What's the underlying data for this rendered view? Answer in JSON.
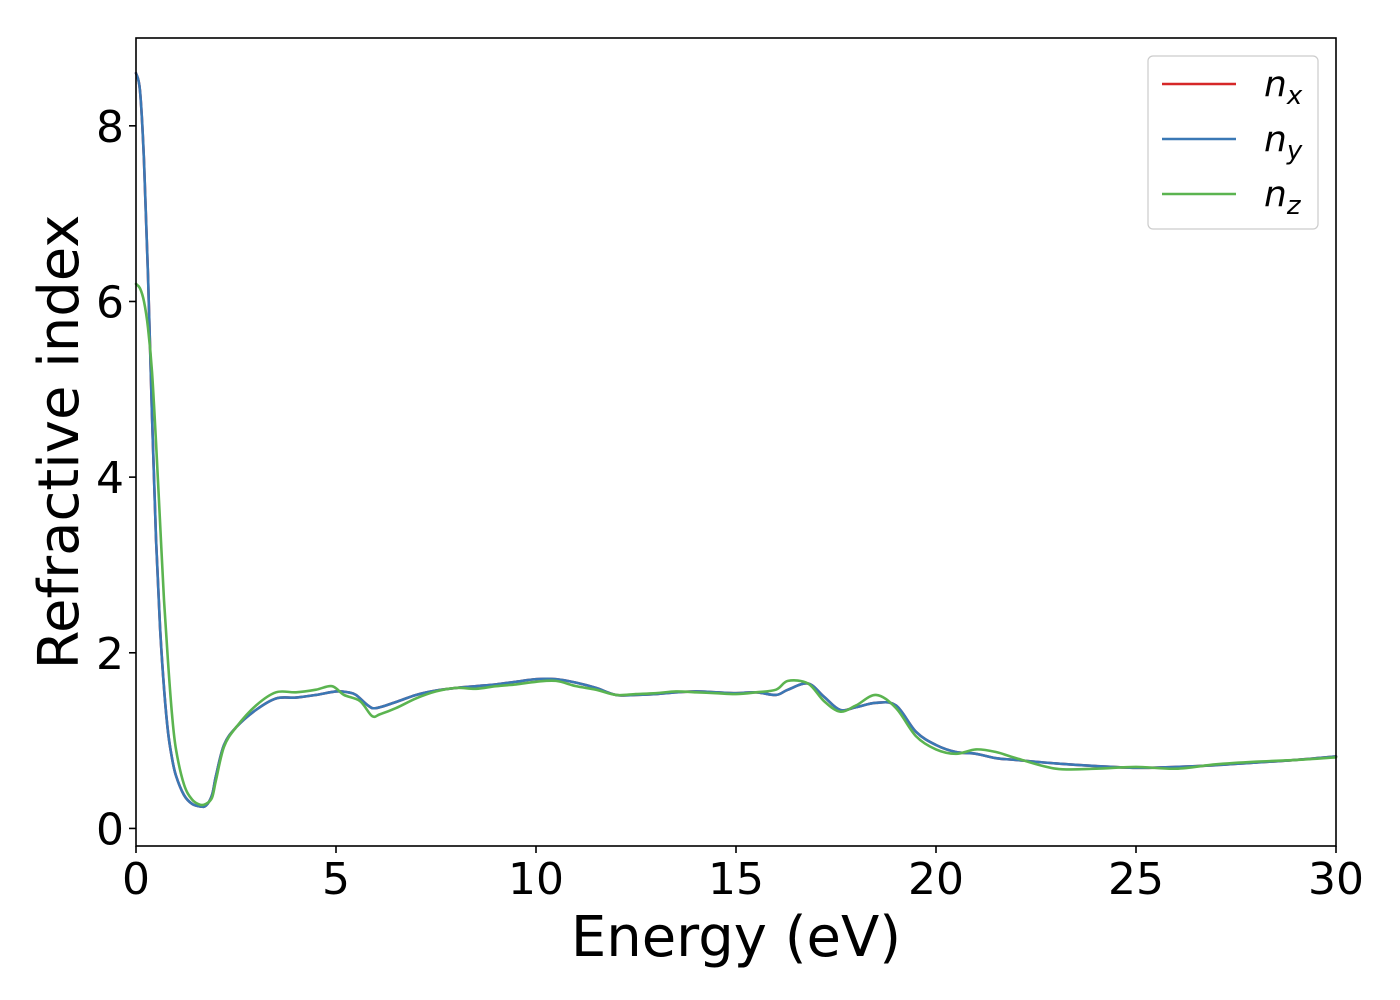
{
  "chart_data": {
    "type": "line",
    "title": "",
    "xlabel": "Energy (eV)",
    "ylabel": "Refractive index",
    "xlim": [
      0,
      30
    ],
    "ylim": [
      -0.2,
      9.0
    ],
    "xticks": [
      0,
      5,
      10,
      15,
      20,
      25,
      30
    ],
    "xtick_labels": [
      "0",
      "5",
      "10",
      "15",
      "20",
      "25",
      "30"
    ],
    "yticks": [
      0,
      2,
      4,
      6,
      8
    ],
    "ytick_labels": [
      "0",
      "2",
      "4",
      "6",
      "8"
    ],
    "grid": false,
    "legend_position": "top-right",
    "series": [
      {
        "name": "n_x",
        "label_main": "n",
        "label_sub": "x",
        "color": "#d62728",
        "x": [
          0,
          0.1,
          0.2,
          0.3,
          0.4,
          0.5,
          0.6,
          0.7,
          0.8,
          0.9,
          1.0,
          1.2,
          1.4,
          1.6,
          1.75,
          1.9,
          2.0,
          2.2,
          2.5,
          3.0,
          3.5,
          4.0,
          4.5,
          5.0,
          5.3,
          5.5,
          5.8,
          6.0,
          6.5,
          7.0,
          7.5,
          8.0,
          8.5,
          9.0,
          9.5,
          10.0,
          10.5,
          11.0,
          11.5,
          12.0,
          12.5,
          13.0,
          13.5,
          14.0,
          14.5,
          15.0,
          15.5,
          16.0,
          16.3,
          16.8,
          17.2,
          17.6,
          18.0,
          18.5,
          19.0,
          19.5,
          20.0,
          20.5,
          21.0,
          21.5,
          22.0,
          23.0,
          24.0,
          25.0,
          26.0,
          27.0,
          28.0,
          29.0,
          30.0
        ],
        "y": [
          8.6,
          8.4,
          7.6,
          6.3,
          4.7,
          3.3,
          2.3,
          1.6,
          1.1,
          0.8,
          0.6,
          0.38,
          0.28,
          0.25,
          0.26,
          0.38,
          0.6,
          0.95,
          1.15,
          1.35,
          1.48,
          1.49,
          1.52,
          1.56,
          1.55,
          1.52,
          1.4,
          1.37,
          1.44,
          1.52,
          1.57,
          1.6,
          1.62,
          1.64,
          1.67,
          1.7,
          1.7,
          1.66,
          1.6,
          1.52,
          1.52,
          1.53,
          1.55,
          1.56,
          1.55,
          1.54,
          1.55,
          1.52,
          1.58,
          1.65,
          1.5,
          1.35,
          1.38,
          1.43,
          1.4,
          1.1,
          0.95,
          0.87,
          0.85,
          0.8,
          0.78,
          0.74,
          0.71,
          0.69,
          0.7,
          0.72,
          0.75,
          0.78,
          0.82
        ]
      },
      {
        "name": "n_y",
        "label_main": "n",
        "label_sub": "y",
        "color": "#3a78b5",
        "x": [
          0,
          0.1,
          0.2,
          0.3,
          0.4,
          0.5,
          0.6,
          0.7,
          0.8,
          0.9,
          1.0,
          1.2,
          1.4,
          1.6,
          1.75,
          1.9,
          2.0,
          2.2,
          2.5,
          3.0,
          3.5,
          4.0,
          4.5,
          5.0,
          5.3,
          5.5,
          5.8,
          6.0,
          6.5,
          7.0,
          7.5,
          8.0,
          8.5,
          9.0,
          9.5,
          10.0,
          10.5,
          11.0,
          11.5,
          12.0,
          12.5,
          13.0,
          13.5,
          14.0,
          14.5,
          15.0,
          15.5,
          16.0,
          16.3,
          16.8,
          17.2,
          17.6,
          18.0,
          18.5,
          19.0,
          19.5,
          20.0,
          20.5,
          21.0,
          21.5,
          22.0,
          23.0,
          24.0,
          25.0,
          26.0,
          27.0,
          28.0,
          29.0,
          30.0
        ],
        "y": [
          8.6,
          8.4,
          7.6,
          6.3,
          4.7,
          3.3,
          2.3,
          1.6,
          1.1,
          0.8,
          0.6,
          0.38,
          0.28,
          0.25,
          0.26,
          0.38,
          0.6,
          0.95,
          1.15,
          1.35,
          1.48,
          1.49,
          1.52,
          1.56,
          1.55,
          1.52,
          1.4,
          1.37,
          1.44,
          1.52,
          1.57,
          1.6,
          1.62,
          1.64,
          1.67,
          1.7,
          1.7,
          1.66,
          1.6,
          1.52,
          1.52,
          1.53,
          1.55,
          1.56,
          1.55,
          1.54,
          1.55,
          1.52,
          1.58,
          1.65,
          1.5,
          1.35,
          1.38,
          1.43,
          1.4,
          1.1,
          0.95,
          0.87,
          0.85,
          0.8,
          0.78,
          0.74,
          0.71,
          0.69,
          0.7,
          0.72,
          0.75,
          0.78,
          0.82
        ]
      },
      {
        "name": "n_z",
        "label_main": "n",
        "label_sub": "z",
        "color": "#5bb450",
        "x": [
          0,
          0.1,
          0.2,
          0.3,
          0.4,
          0.5,
          0.6,
          0.7,
          0.8,
          0.9,
          1.0,
          1.2,
          1.4,
          1.6,
          1.75,
          1.9,
          2.0,
          2.2,
          2.5,
          3.0,
          3.5,
          4.0,
          4.5,
          4.9,
          5.2,
          5.6,
          5.9,
          6.1,
          6.5,
          7.0,
          7.5,
          8.0,
          8.5,
          9.0,
          9.5,
          10.0,
          10.5,
          11.0,
          11.5,
          12.0,
          12.5,
          13.0,
          13.5,
          14.0,
          14.5,
          15.0,
          15.5,
          16.0,
          16.3,
          16.8,
          17.2,
          17.6,
          18.0,
          18.5,
          19.0,
          19.5,
          20.0,
          20.5,
          21.0,
          21.5,
          22.0,
          23.0,
          24.0,
          25.0,
          26.0,
          27.0,
          28.0,
          29.0,
          30.0
        ],
        "y": [
          6.2,
          6.15,
          6.0,
          5.7,
          5.2,
          4.4,
          3.5,
          2.6,
          1.9,
          1.3,
          0.9,
          0.5,
          0.33,
          0.27,
          0.28,
          0.35,
          0.55,
          0.93,
          1.15,
          1.4,
          1.55,
          1.55,
          1.58,
          1.62,
          1.52,
          1.45,
          1.28,
          1.3,
          1.37,
          1.48,
          1.56,
          1.6,
          1.59,
          1.62,
          1.64,
          1.67,
          1.68,
          1.62,
          1.58,
          1.52,
          1.53,
          1.54,
          1.56,
          1.55,
          1.54,
          1.53,
          1.55,
          1.58,
          1.68,
          1.65,
          1.45,
          1.33,
          1.4,
          1.52,
          1.37,
          1.05,
          0.9,
          0.85,
          0.9,
          0.87,
          0.8,
          0.68,
          0.68,
          0.7,
          0.68,
          0.73,
          0.76,
          0.78,
          0.81
        ]
      }
    ]
  }
}
